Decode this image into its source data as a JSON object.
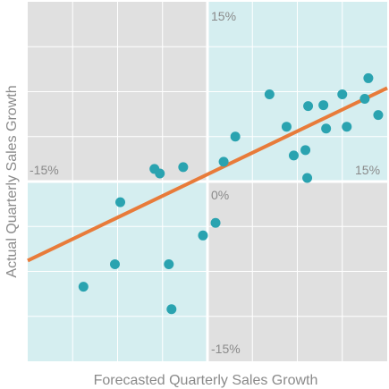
{
  "colors": {
    "quadrant_gray": "#e0e0e0",
    "quadrant_teal": "#d5eef0",
    "gridline": "#ffffff",
    "point": "#2aa3b0",
    "trend": "#e87b3a",
    "text": "#8a8a8a"
  },
  "chart_data": {
    "type": "scatter",
    "xlabel": "Forecasted Quarterly Sales Growth",
    "ylabel": "Actual Quarterly Sales Growth",
    "xlim": [
      -0.2,
      0.2
    ],
    "ylim": [
      -0.2,
      0.2
    ],
    "grid": true,
    "quadrants": {
      "top_left": "gray",
      "top_right": "teal",
      "bottom_left": "teal",
      "bottom_right": "gray"
    },
    "tick_labels": {
      "x_left": "-15%",
      "x_right": "15%",
      "y_top": "15%",
      "y_bottom": "-15%",
      "origin": "0%"
    },
    "points": [
      {
        "x": -0.138,
        "y": -0.117
      },
      {
        "x": -0.103,
        "y": -0.092
      },
      {
        "x": -0.097,
        "y": -0.023
      },
      {
        "x": -0.059,
        "y": 0.014
      },
      {
        "x": -0.053,
        "y": 0.009
      },
      {
        "x": -0.043,
        "y": -0.092
      },
      {
        "x": -0.04,
        "y": -0.142
      },
      {
        "x": -0.027,
        "y": 0.016
      },
      {
        "x": -0.005,
        "y": -0.06
      },
      {
        "x": 0.009,
        "y": -0.046
      },
      {
        "x": 0.018,
        "y": 0.022
      },
      {
        "x": 0.031,
        "y": 0.05
      },
      {
        "x": 0.069,
        "y": 0.097
      },
      {
        "x": 0.088,
        "y": 0.061
      },
      {
        "x": 0.096,
        "y": 0.029
      },
      {
        "x": 0.109,
        "y": 0.035
      },
      {
        "x": 0.112,
        "y": 0.084
      },
      {
        "x": 0.111,
        "y": 0.004
      },
      {
        "x": 0.129,
        "y": 0.085
      },
      {
        "x": 0.132,
        "y": 0.059
      },
      {
        "x": 0.15,
        "y": 0.097
      },
      {
        "x": 0.155,
        "y": 0.061
      },
      {
        "x": 0.175,
        "y": 0.092
      },
      {
        "x": 0.179,
        "y": 0.115
      },
      {
        "x": 0.19,
        "y": 0.074
      }
    ],
    "trendline": {
      "x": [
        -0.2,
        0.2
      ],
      "y": [
        -0.088,
        0.104
      ]
    }
  }
}
